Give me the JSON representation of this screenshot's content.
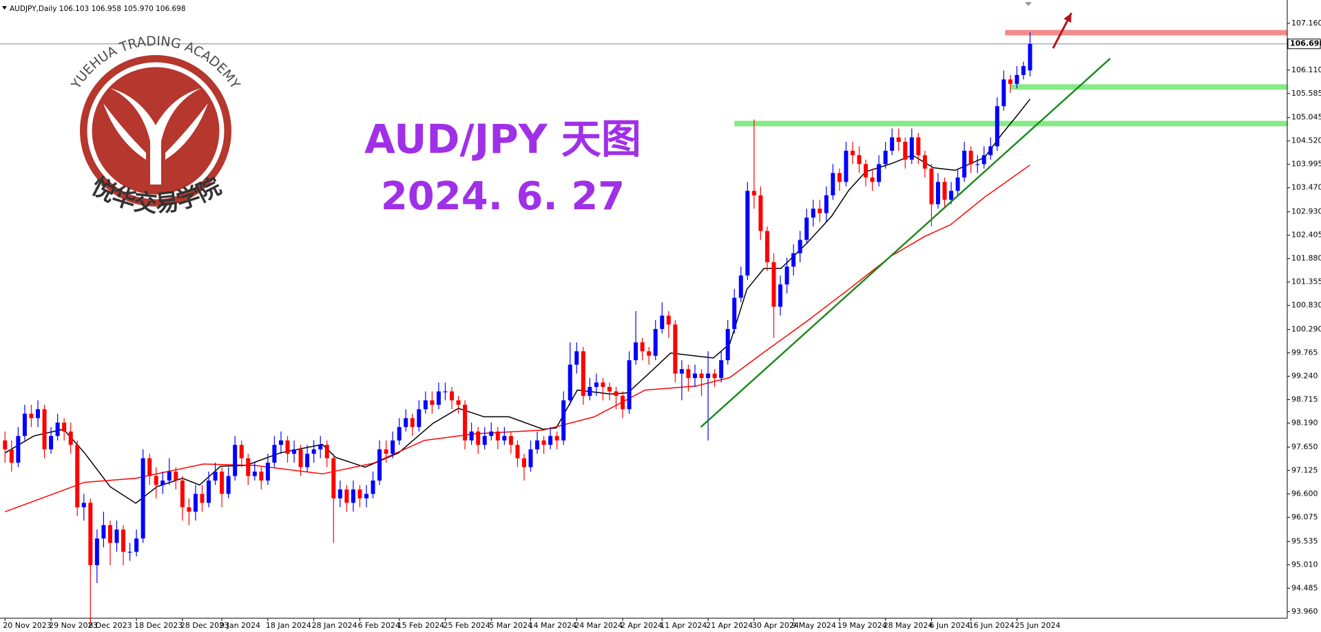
{
  "watermark": {
    "text_en": "YUEHUA TRADING ACADEMY",
    "text_cn": "悦华交易学院"
  },
  "chart_data": {
    "type": "candlestick",
    "header": "AUDJPY,Daily  106.103 106.958 105.970 106.698",
    "title": "AUD/JPY 天图",
    "subtitle": "2024. 6. 27",
    "title_color": "#a030e8",
    "up_color": "#0000ff",
    "down_color": "#ff0000",
    "categories": [
      "20 Nov 2023",
      null,
      null,
      null,
      null,
      null,
      null,
      "29 Nov 2023",
      null,
      null,
      null,
      null,
      null,
      "8 Dec 2023",
      null,
      null,
      null,
      null,
      null,
      null,
      "18 Dec 2023",
      null,
      null,
      null,
      null,
      null,
      null,
      "28 Dec 2023",
      null,
      null,
      null,
      null,
      null,
      "9 Jan 2024",
      null,
      null,
      null,
      null,
      null,
      null,
      "18 Jan 2024",
      null,
      null,
      null,
      null,
      null,
      null,
      "28 Jan 2024",
      null,
      null,
      null,
      null,
      null,
      null,
      "6 Feb 2024",
      null,
      null,
      null,
      null,
      null,
      "15 Feb 2024",
      null,
      null,
      null,
      null,
      null,
      null,
      "25 Feb 2024",
      null,
      null,
      null,
      null,
      null,
      null,
      "5 Mar 2024",
      null,
      null,
      null,
      null,
      null,
      "14 Mar 2024",
      null,
      null,
      null,
      null,
      null,
      null,
      "24 Mar 2024",
      null,
      null,
      null,
      null,
      null,
      null,
      "2 Apr 2024",
      null,
      null,
      null,
      null,
      null,
      "11 Apr 2024",
      null,
      null,
      null,
      null,
      null,
      null,
      "21 Apr 2024",
      null,
      null,
      null,
      null,
      null,
      null,
      "30 Apr 2024",
      null,
      null,
      null,
      null,
      null,
      "9 May 2024",
      null,
      null,
      null,
      null,
      null,
      null,
      "19 May 2024",
      null,
      null,
      null,
      null,
      null,
      null,
      "28 May 2024",
      null,
      null,
      null,
      null,
      null,
      null,
      "6 Jun 2024",
      null,
      null,
      null,
      null,
      null,
      "16 Jun 2024",
      null,
      null,
      null,
      null,
      null,
      null,
      "25 Jun 2024",
      null,
      null
    ],
    "open": [
      97.8,
      97.6,
      97.3,
      97.9,
      98.4,
      98.3,
      98.5,
      97.6,
      97.9,
      98.2,
      98.0,
      97.7,
      96.3,
      96.4,
      95.0,
      95.6,
      95.9,
      95.5,
      95.8,
      95.3,
      95.3,
      95.6,
      97.4,
      97.0,
      96.8,
      96.9,
      97.1,
      96.9,
      96.3,
      96.2,
      96.6,
      96.4,
      96.9,
      97.1,
      96.6,
      97.0,
      97.7,
      97.4,
      97.0,
      97.1,
      96.9,
      97.3,
      97.7,
      97.8,
      97.5,
      97.6,
      97.2,
      97.5,
      97.6,
      97.7,
      97.4,
      96.5,
      96.7,
      96.4,
      96.7,
      96.5,
      96.6,
      96.9,
      97.6,
      97.5,
      97.8,
      98.1,
      98.3,
      98.1,
      98.5,
      98.7,
      98.6,
      98.9,
      98.9,
      98.7,
      98.6,
      97.8,
      98.0,
      97.7,
      97.9,
      98.0,
      97.8,
      97.9,
      97.7,
      97.4,
      97.2,
      97.6,
      97.8,
      97.7,
      97.9,
      97.8,
      98.7,
      99.5,
      99.8,
      98.8,
      99.0,
      99.1,
      99.0,
      98.9,
      98.8,
      98.5,
      99.6,
      100.0,
      99.8,
      99.7,
      100.3,
      100.6,
      100.4,
      99.3,
      99.4,
      99.2,
      99.3,
      99.2,
      99.3,
      99.2,
      99.6,
      100.3,
      101.0,
      101.5,
      103.4,
      103.3,
      102.5,
      101.8,
      100.8,
      101.3,
      101.7,
      102.0,
      102.3,
      102.8,
      103.0,
      102.9,
      103.3,
      103.8,
      103.6,
      104.3,
      104.2,
      104.0,
      103.7,
      103.6,
      104.0,
      104.3,
      104.6,
      104.5,
      104.1,
      104.6,
      104.2,
      103.9,
      103.1,
      103.6,
      103.2,
      103.4,
      103.7,
      104.3,
      104.0,
      104.0,
      104.2,
      104.4,
      105.3,
      105.9,
      105.8,
      106.0,
      106.103
    ],
    "high": [
      98.0,
      97.8,
      98.1,
      98.6,
      98.6,
      98.7,
      98.6,
      98.1,
      98.4,
      98.3,
      98.2,
      97.8,
      96.6,
      96.5,
      95.8,
      96.2,
      96.0,
      96.0,
      95.9,
      95.5,
      95.8,
      97.6,
      97.5,
      97.2,
      97.1,
      97.4,
      97.2,
      97.0,
      96.5,
      96.8,
      96.8,
      97.1,
      97.3,
      97.2,
      97.2,
      97.9,
      97.8,
      97.5,
      97.3,
      97.2,
      97.5,
      97.9,
      98.0,
      97.9,
      97.8,
      97.7,
      97.7,
      97.8,
      97.9,
      97.8,
      97.5,
      96.9,
      96.8,
      96.9,
      96.8,
      96.8,
      97.1,
      97.8,
      97.8,
      98.0,
      98.3,
      98.5,
      98.4,
      98.7,
      98.9,
      98.9,
      99.1,
      99.1,
      99.0,
      98.8,
      98.7,
      98.2,
      98.1,
      98.1,
      98.2,
      98.1,
      98.1,
      98.0,
      97.8,
      97.5,
      97.8,
      98.0,
      97.9,
      98.1,
      98.0,
      98.9,
      100.0,
      100.0,
      99.9,
      99.2,
      99.3,
      99.2,
      99.1,
      99.0,
      98.9,
      99.8,
      100.7,
      100.1,
      99.9,
      100.5,
      100.9,
      100.7,
      100.5,
      99.6,
      99.5,
      99.5,
      99.4,
      99.8,
      99.4,
      99.8,
      100.5,
      101.2,
      101.7,
      103.6,
      105.0,
      103.5,
      102.6,
      102.0,
      101.5,
      101.9,
      102.2,
      102.5,
      103.0,
      103.2,
      103.2,
      103.5,
      104.0,
      103.9,
      104.5,
      104.5,
      104.4,
      104.1,
      103.9,
      104.2,
      104.5,
      104.8,
      104.8,
      104.6,
      104.8,
      104.7,
      104.3,
      104.0,
      103.8,
      103.7,
      103.6,
      103.9,
      104.5,
      104.4,
      104.2,
      104.4,
      104.6,
      105.5,
      106.1,
      106.0,
      106.2,
      106.3,
      106.958
    ],
    "low": [
      97.3,
      97.1,
      97.2,
      97.8,
      98.1,
      98.1,
      97.4,
      97.5,
      97.8,
      97.8,
      97.5,
      96.1,
      96.0,
      93.7,
      94.6,
      95.4,
      95.0,
      95.3,
      95.0,
      95.1,
      95.2,
      95.5,
      96.8,
      96.5,
      96.6,
      96.8,
      96.7,
      96.0,
      95.9,
      96.0,
      96.2,
      96.3,
      96.8,
      96.3,
      96.5,
      96.9,
      97.2,
      96.8,
      96.9,
      96.7,
      96.8,
      97.2,
      97.5,
      97.3,
      97.3,
      97.0,
      97.1,
      97.3,
      97.4,
      97.2,
      95.5,
      96.3,
      96.2,
      96.2,
      96.3,
      96.3,
      96.5,
      96.8,
      97.3,
      97.4,
      97.7,
      98.0,
      97.9,
      98.0,
      98.4,
      98.4,
      98.5,
      98.7,
      98.5,
      98.4,
      97.6,
      97.7,
      97.5,
      97.6,
      97.8,
      97.6,
      97.7,
      97.5,
      97.2,
      96.9,
      97.1,
      97.5,
      97.5,
      97.6,
      97.6,
      97.7,
      98.6,
      99.3,
      98.6,
      98.7,
      98.8,
      98.7,
      98.7,
      98.5,
      98.3,
      98.4,
      99.5,
      99.6,
      99.5,
      99.6,
      100.2,
      100.1,
      99.1,
      98.7,
      98.9,
      99.0,
      98.8,
      97.8,
      99.0,
      99.1,
      99.5,
      100.2,
      100.9,
      101.4,
      103.0,
      102.3,
      101.6,
      100.1,
      100.6,
      101.1,
      101.5,
      101.8,
      102.2,
      102.6,
      102.7,
      102.7,
      103.2,
      103.4,
      103.5,
      104.0,
      103.8,
      103.5,
      103.4,
      103.5,
      103.9,
      104.2,
      104.3,
      103.9,
      104.0,
      104.0,
      103.7,
      102.6,
      103.0,
      103.0,
      103.1,
      103.3,
      103.6,
      103.8,
      103.8,
      103.9,
      104.1,
      104.3,
      105.2,
      105.6,
      105.7,
      105.9,
      105.97
    ],
    "close": [
      97.6,
      97.3,
      97.9,
      98.4,
      98.3,
      98.5,
      97.6,
      97.9,
      98.2,
      98.0,
      97.7,
      96.3,
      96.4,
      95.0,
      95.6,
      95.9,
      95.5,
      95.8,
      95.3,
      95.3,
      95.6,
      97.4,
      97.0,
      96.8,
      96.9,
      97.1,
      96.9,
      96.3,
      96.2,
      96.6,
      96.4,
      96.9,
      97.1,
      96.6,
      97.0,
      97.7,
      97.4,
      97.0,
      97.1,
      96.9,
      97.3,
      97.7,
      97.8,
      97.5,
      97.6,
      97.2,
      97.5,
      97.6,
      97.7,
      97.4,
      96.5,
      96.7,
      96.4,
      96.7,
      96.5,
      96.6,
      96.9,
      97.6,
      97.5,
      97.8,
      98.1,
      98.3,
      98.1,
      98.5,
      98.7,
      98.6,
      98.9,
      98.9,
      98.7,
      98.6,
      97.8,
      98.0,
      97.7,
      97.9,
      98.0,
      97.8,
      97.9,
      97.7,
      97.4,
      97.2,
      97.6,
      97.8,
      97.7,
      97.9,
      97.8,
      98.7,
      99.5,
      99.8,
      98.8,
      99.0,
      99.1,
      99.0,
      98.9,
      98.8,
      98.5,
      99.6,
      100.0,
      99.8,
      99.7,
      100.3,
      100.6,
      100.4,
      99.3,
      99.4,
      99.2,
      99.3,
      99.2,
      99.3,
      99.2,
      99.6,
      100.3,
      101.0,
      101.5,
      103.4,
      103.3,
      102.5,
      101.8,
      100.8,
      101.3,
      101.7,
      102.0,
      102.3,
      102.8,
      103.0,
      102.9,
      103.3,
      103.8,
      103.6,
      104.3,
      104.2,
      104.0,
      103.7,
      103.6,
      104.0,
      104.3,
      104.6,
      104.5,
      104.1,
      104.6,
      104.2,
      103.9,
      103.1,
      103.6,
      103.2,
      103.4,
      103.7,
      104.3,
      104.0,
      104.0,
      104.2,
      104.4,
      105.3,
      105.9,
      105.8,
      106.0,
      106.2,
      106.698
    ],
    "moving_averages": [
      {
        "color": "#000000",
        "x": [
          0,
          4.4,
          8.9,
          12.1,
          16.0,
          19.9,
          23.1,
          27.0,
          29.6,
          32.8,
          36.7,
          41.9,
          48.3,
          50.3,
          54.8,
          59.9,
          65.1,
          69.0,
          72.9,
          76.7,
          81.9,
          83.9,
          87.1,
          92.2,
          94.8,
          98.7,
          101.3,
          107.8,
          110.3,
          112.9,
          115.5,
          118.1,
          122.0,
          125.8,
          128.4,
          131.0,
          134.9,
          138.1,
          141.3,
          144.6,
          149.1,
          151.7,
          154.3,
          156
        ],
        "values": [
          97.52,
          97.9,
          98.05,
          97.52,
          96.76,
          96.39,
          96.76,
          96.95,
          96.8,
          97.22,
          97.24,
          97.52,
          97.71,
          97.42,
          97.2,
          97.52,
          98.18,
          98.52,
          98.33,
          98.33,
          98.05,
          98.08,
          98.93,
          98.84,
          98.87,
          99.4,
          99.76,
          99.65,
          99.97,
          101.19,
          101.66,
          101.66,
          102.22,
          102.83,
          103.41,
          103.83,
          104.01,
          104.2,
          103.92,
          103.86,
          104.15,
          104.67,
          105.14,
          105.46
        ]
      },
      {
        "color": "#ff0000",
        "x": [
          0,
          7,
          12.1,
          19.9,
          30.2,
          38,
          48.3,
          56.1,
          63.8,
          71.6,
          81.9,
          89.7,
          97.4,
          105.2,
          110.3,
          115.5,
          122,
          128.4,
          134.9,
          140,
          143.9,
          149.1,
          156
        ],
        "values": [
          96.2,
          96.58,
          96.86,
          96.95,
          97.27,
          97.24,
          97.05,
          97.29,
          97.8,
          97.95,
          98.03,
          98.33,
          98.93,
          99.02,
          99.21,
          99.78,
          100.47,
          101.19,
          101.94,
          102.38,
          102.64,
          103.26,
          103.98
        ]
      }
    ],
    "last_price": 106.698,
    "last_price_color": "#7a8a9a",
    "annotations": {
      "hlines": [
        {
          "value": 106.95,
          "color": "#f28c8c",
          "x_start": 152.2
        },
        {
          "value": 105.73,
          "color": "#86ea86",
          "x_start": 153
        },
        {
          "value": 104.91,
          "color": "#86ea86",
          "x_start": 111
        }
      ],
      "trendline": {
        "color": "#1f8a1f",
        "x": [
          105.9,
          168.2
        ],
        "values": [
          98.1,
          106.37
        ]
      },
      "arrow": {
        "color": "#b0121b",
        "x": [
          159.5,
          162.3
        ],
        "values": [
          106.6,
          107.39
        ]
      }
    },
    "ylim": [
      93.81,
      107.59
    ],
    "yticks": [
      {
        "value": 93.96,
        "label": "93.960"
      },
      94.485,
      {
        "value": 95.01,
        "label": "95.010"
      },
      95.535,
      96.075,
      {
        "value": 96.6,
        "label": "96.600"
      },
      97.125,
      {
        "value": 97.65,
        "label": "97.650"
      },
      {
        "value": 98.19,
        "label": "98.190"
      },
      98.715,
      {
        "value": 99.24,
        "label": "99.240"
      },
      99.765,
      {
        "value": 100.29,
        "label": "100.290"
      },
      {
        "value": 100.83,
        "label": "100.830"
      },
      101.355,
      {
        "value": 101.88,
        "label": "101.880"
      },
      102.405,
      {
        "value": 102.93,
        "label": "102.930"
      },
      {
        "value": 103.47,
        "label": "103.470"
      },
      103.995,
      {
        "value": 104.52,
        "label": "104.520"
      },
      105.045,
      105.585,
      {
        "value": 106.11,
        "label": "106.110"
      },
      {
        "value": 107.16,
        "label": "107.160"
      }
    ]
  }
}
